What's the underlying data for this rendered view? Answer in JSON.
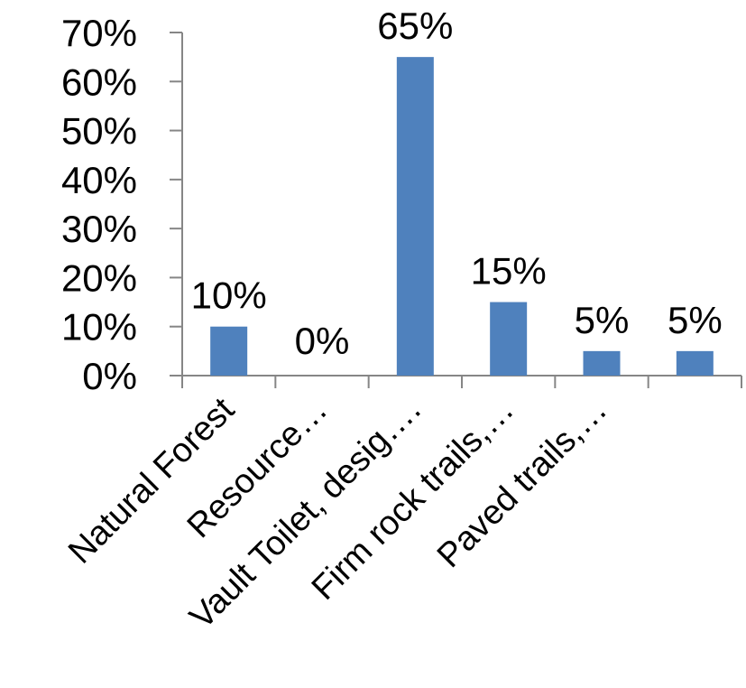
{
  "chart_data": {
    "type": "bar",
    "categories": [
      "Natural Forest",
      "Resource…",
      "Vault Toilet, desig….",
      "Firm rock trails,…",
      "Paved trails,…",
      ""
    ],
    "values": [
      10,
      0,
      65,
      15,
      5,
      5
    ],
    "data_labels": [
      "10%",
      "0%",
      "65%",
      "15%",
      "5%",
      "5%"
    ],
    "y_ticks": [
      "0%",
      "10%",
      "20%",
      "30%",
      "40%",
      "50%",
      "60%",
      "70%"
    ],
    "ylim": [
      0,
      70
    ],
    "title": "",
    "xlabel": "",
    "ylabel": "",
    "grid": false,
    "legend": "none",
    "bar_color": "#4f81bd",
    "axis_color": "#868686"
  }
}
